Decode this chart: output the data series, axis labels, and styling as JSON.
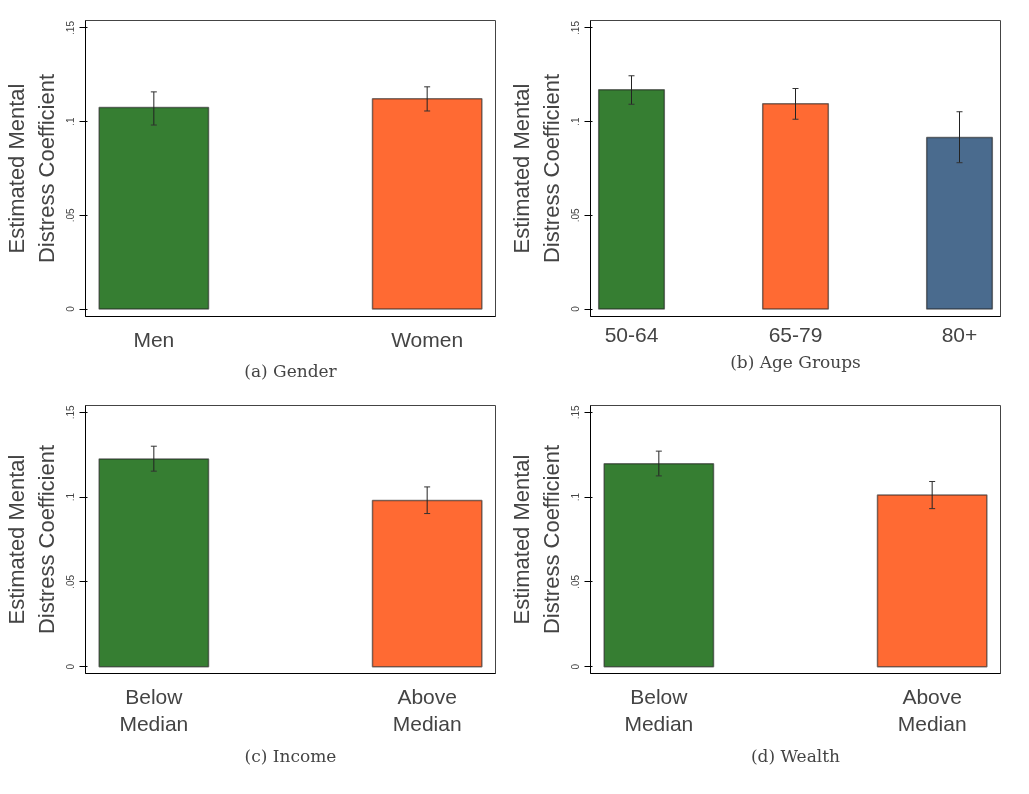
{
  "chart_data": [
    {
      "type": "bar",
      "title": "(a) Gender",
      "ylabel": "Estimated Mental\nDistress Coefficient",
      "categories": [
        "Men",
        "Women"
      ],
      "values": [
        0.1075,
        0.1122
      ],
      "colors": [
        "#367e32",
        "#ff6a33"
      ],
      "errors": [
        [
          0.0982,
          0.1159
        ],
        [
          0.1057,
          0.1186
        ]
      ],
      "ylim": [
        -0.004,
        0.154
      ],
      "yticks": [
        0,
        {
          "value": 0.05,
          "label": ".05"
        },
        {
          "value": 0.1,
          "label": ".1"
        },
        {
          "value": 0.15,
          "label": ".15"
        }
      ],
      "grid": false
    },
    {
      "type": "bar",
      "title": "(b) Age Groups",
      "ylabel": "Estimated Mental\nDistress Coefficient",
      "categories": [
        "50-64",
        "65-79",
        "80+"
      ],
      "values": [
        0.117,
        0.1095,
        0.0916
      ],
      "colors": [
        "#367e32",
        "#ff6a33",
        "#4a6b8e"
      ],
      "errors": [
        [
          0.1093,
          0.1245
        ],
        [
          0.1013,
          0.1177
        ],
        [
          0.0781,
          0.1053
        ]
      ],
      "ylim": [
        -0.004,
        0.154
      ],
      "yticks": [
        0,
        {
          "value": 0.05,
          "label": ".05"
        },
        {
          "value": 0.1,
          "label": ".1"
        },
        {
          "value": 0.15,
          "label": ".15"
        }
      ],
      "grid": false
    },
    {
      "type": "bar",
      "title": "(c) Income",
      "ylabel": "Estimated Mental\nDistress Coefficient",
      "categories": [
        "Below\nMedian",
        "Above\nMedian"
      ],
      "values": [
        0.1224,
        0.098
      ],
      "colors": [
        "#367e32",
        "#ff6a33"
      ],
      "errors": [
        [
          0.1153,
          0.13
        ],
        [
          0.0903,
          0.106
        ]
      ],
      "ylim": [
        -0.004,
        0.154
      ],
      "yticks": [
        0,
        {
          "value": 0.05,
          "label": ".05"
        },
        {
          "value": 0.1,
          "label": ".1"
        },
        {
          "value": 0.15,
          "label": ".15"
        }
      ],
      "grid": false
    },
    {
      "type": "bar",
      "title": "(d) Wealth",
      "ylabel": "Estimated Mental\nDistress Coefficient",
      "categories": [
        "Below\nMedian",
        "Above\nMedian"
      ],
      "values": [
        0.1196,
        0.1013
      ],
      "colors": [
        "#367e32",
        "#ff6a33"
      ],
      "errors": [
        [
          0.1125,
          0.1271
        ],
        [
          0.0932,
          0.1092
        ]
      ],
      "ylim": [
        -0.004,
        0.154
      ],
      "yticks": [
        0,
        {
          "value": 0.05,
          "label": ".05"
        },
        {
          "value": 0.1,
          "label": ".1"
        },
        {
          "value": 0.15,
          "label": ".15"
        }
      ],
      "grid": false
    }
  ]
}
